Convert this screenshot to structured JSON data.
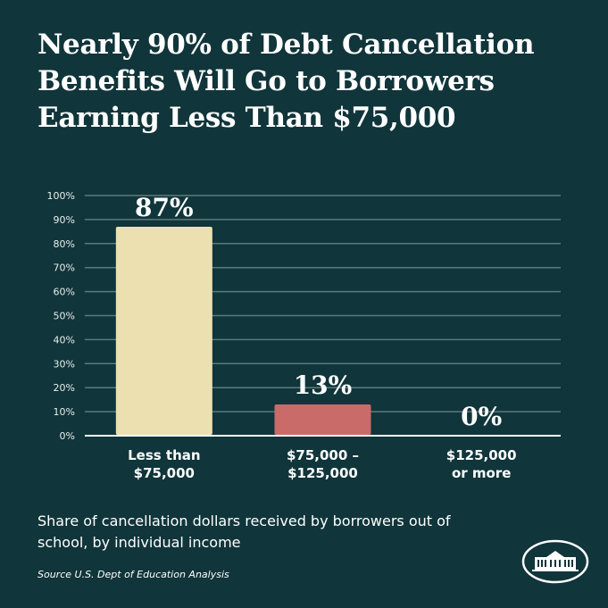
{
  "chart_data": {
    "type": "bar",
    "title": "Nearly 90% of Debt Cancellation Benefits Will Go to Borrowers Earning Less Than $75,000",
    "categories": [
      "Less than $75,000",
      "$75,000 – $125,000",
      "$125,000 or more"
    ],
    "category_lines": [
      [
        "Less than",
        "$75,000"
      ],
      [
        "$75,000 –",
        "$125,000"
      ],
      [
        "$125,000",
        "or more"
      ]
    ],
    "values": [
      87,
      13,
      0
    ],
    "data_labels": [
      "87%",
      "13%",
      "0%"
    ],
    "bar_colors": [
      "#ece0b0",
      "#c96b68"
    ],
    "ylim": [
      0,
      100
    ],
    "yticks": [
      0,
      10,
      20,
      30,
      40,
      50,
      60,
      70,
      80,
      90,
      100
    ],
    "ytick_labels": [
      "0%",
      "10%",
      "20%",
      "30%",
      "40%",
      "50%",
      "60%",
      "70%",
      "80%",
      "90%",
      "100%"
    ],
    "grid": true,
    "xlabel": "",
    "ylabel": ""
  },
  "caption": "Share of cancellation dollars received by borrowers out of school, by individual income",
  "source": "Source U.S. Dept of Education Analysis",
  "logo": "white-house-logo",
  "colors": {
    "background": "#10353a",
    "grid": "#5d7a7c",
    "axis": "#ffffff"
  }
}
